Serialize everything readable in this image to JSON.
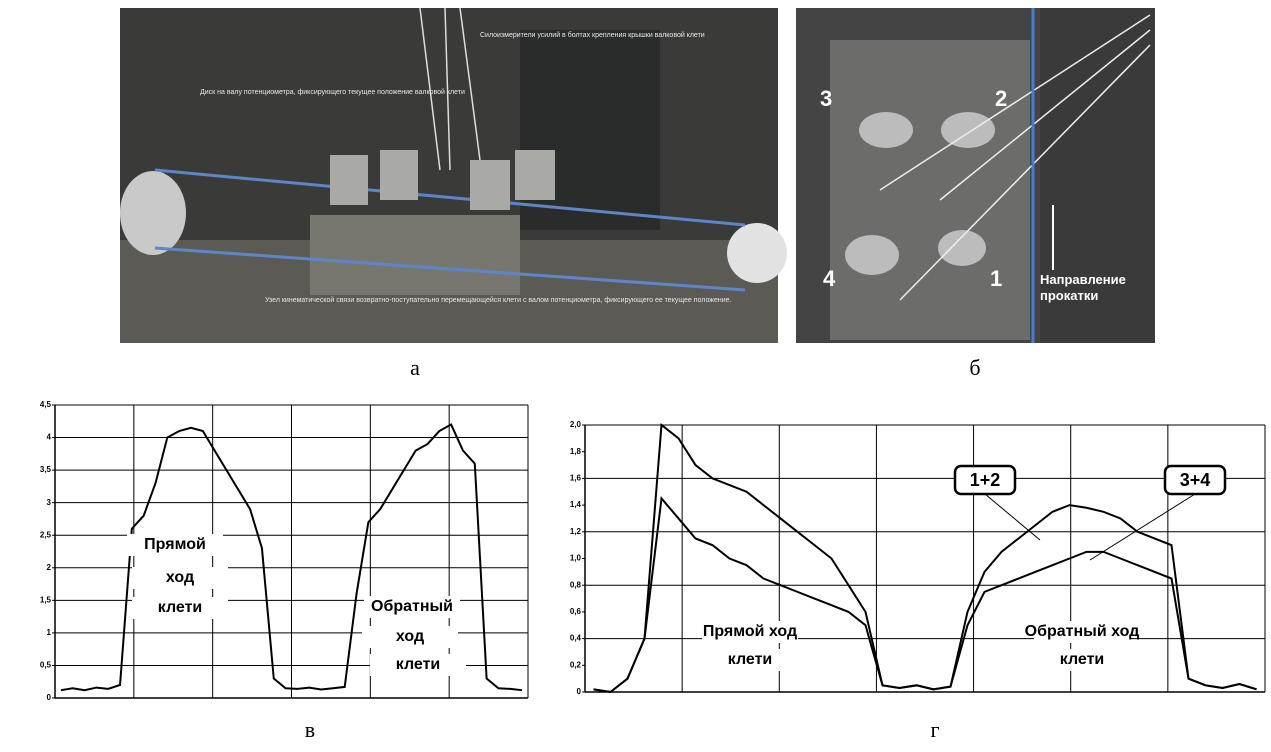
{
  "photos": {
    "a": {
      "callouts": [
        "Силоизмерители усилий в болтах крепления крышки валковой клети",
        "Диск на валу потенциометра, фиксирующего текущее положение валковой клети",
        "Узел кинематической связи возвратно-поступательно перемещающейся клети с валом потенциометра, фиксирующего ее текущее положение."
      ]
    },
    "b": {
      "labels": [
        "3",
        "2",
        "4",
        "1"
      ],
      "direction": "Направление прокатки"
    }
  },
  "captions": [
    "а",
    "б",
    "в",
    "г"
  ],
  "chart_data": [
    {
      "type": "line",
      "categories": [
        null,
        null,
        null,
        null,
        null,
        null,
        null,
        null,
        null,
        null,
        null,
        null,
        null,
        null,
        null,
        null,
        null,
        null,
        null,
        null,
        null,
        null,
        null,
        null,
        null,
        null,
        null,
        null,
        null,
        null,
        null,
        null,
        null,
        null,
        null,
        null,
        null,
        null,
        null,
        null
      ],
      "series": [
        {
          "color": "#000000",
          "values": [
            0.12,
            0.15,
            0.12,
            0.16,
            0.14,
            0.2,
            2.6,
            2.8,
            3.3,
            4.0,
            4.1,
            4.15,
            4.1,
            3.8,
            3.5,
            3.2,
            2.9,
            2.3,
            0.3,
            0.15,
            0.14,
            0.16,
            0.13,
            0.15,
            0.17,
            1.6,
            2.7,
            2.9,
            3.2,
            3.5,
            3.8,
            3.9,
            4.1,
            4.2,
            3.8,
            3.6,
            0.3,
            0.15,
            0.14,
            0.12
          ]
        }
      ],
      "ylim": [
        0,
        4.5
      ],
      "yticks": [
        0,
        {
          "value": 0.5,
          "label": "0,5"
        },
        1,
        {
          "value": 1.5,
          "label": "1,5"
        },
        2,
        {
          "value": 2.5,
          "label": "2,5"
        },
        3,
        {
          "value": 3.5,
          "label": "3,5"
        },
        4,
        {
          "value": 4.5,
          "label": "4,5"
        }
      ],
      "grid": true,
      "annotations": [
        "Прямой",
        "ход",
        "клети",
        "Обратный",
        "ход",
        "клети"
      ]
    },
    {
      "type": "line",
      "categories": [
        null,
        null,
        null,
        null,
        null,
        null,
        null,
        null,
        null,
        null,
        null,
        null,
        null,
        null,
        null,
        null,
        null,
        null,
        null,
        null,
        null,
        null,
        null,
        null,
        null,
        null,
        null,
        null,
        null,
        null,
        null,
        null,
        null,
        null,
        null,
        null,
        null,
        null,
        null,
        null
      ],
      "series": [
        {
          "name": "1+2",
          "color": "#000000",
          "values": [
            0.02,
            0.0,
            0.1,
            0.4,
            2.0,
            1.9,
            1.7,
            1.6,
            1.55,
            1.5,
            1.4,
            1.3,
            1.2,
            1.1,
            1.0,
            0.8,
            0.6,
            0.05,
            0.03,
            0.05,
            0.02,
            0.04,
            0.6,
            0.9,
            1.05,
            1.15,
            1.25,
            1.35,
            1.4,
            1.38,
            1.35,
            1.3,
            1.2,
            1.15,
            1.1,
            0.1,
            0.05,
            0.03,
            0.06,
            0.02
          ]
        },
        {
          "name": "3+4",
          "color": "#000000",
          "values": [
            0.02,
            0.0,
            0.1,
            0.4,
            1.45,
            1.3,
            1.15,
            1.1,
            1.0,
            0.95,
            0.85,
            0.8,
            0.75,
            0.7,
            0.65,
            0.6,
            0.5,
            0.05,
            0.03,
            0.05,
            0.02,
            0.04,
            0.5,
            0.75,
            0.8,
            0.85,
            0.9,
            0.95,
            1.0,
            1.05,
            1.05,
            1.0,
            0.95,
            0.9,
            0.85,
            0.1,
            0.05,
            0.03,
            0.06,
            0.02
          ]
        }
      ],
      "ylim": [
        0,
        2
      ],
      "yticks": [
        0,
        {
          "value": 0.2,
          "label": "0,2"
        },
        {
          "value": 0.4,
          "label": "0,4"
        },
        {
          "value": 0.6,
          "label": "0,6"
        },
        {
          "value": 0.8,
          "label": "0,8"
        },
        {
          "value": 1.0,
          "label": "1,0"
        },
        {
          "value": 1.2,
          "label": "1,2"
        },
        {
          "value": 1.4,
          "label": "1,4"
        },
        {
          "value": 1.6,
          "label": "1,6"
        },
        {
          "value": 1.8,
          "label": "1,8"
        },
        {
          "value": 2.0,
          "label": "2,0"
        }
      ],
      "grid": true,
      "annotations": [
        "Прямой ход",
        "клети",
        "Обратный ход",
        "клети"
      ]
    }
  ]
}
